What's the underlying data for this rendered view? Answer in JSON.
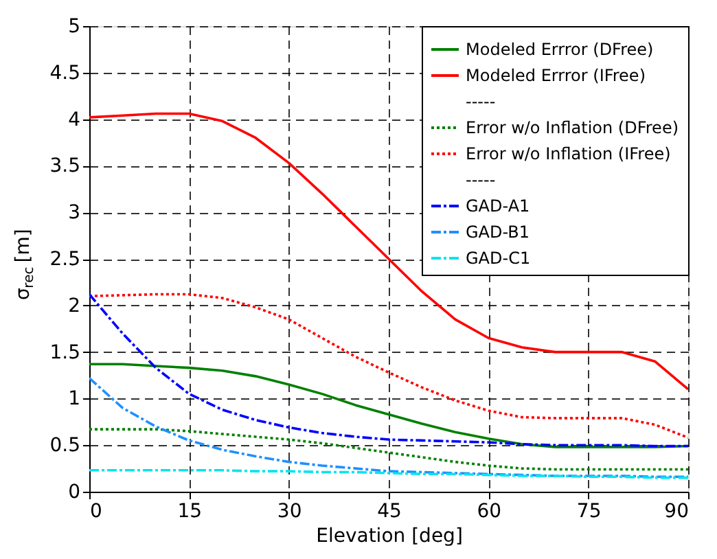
{
  "chart_data": {
    "type": "line",
    "xlabel": "Elevation [deg]",
    "ylabel": "σ$_{rec}$ [m]",
    "x": [
      0,
      5,
      10,
      15,
      20,
      25,
      30,
      35,
      40,
      45,
      50,
      55,
      60,
      65,
      70,
      75,
      80,
      85,
      90
    ],
    "xlim": [
      0,
      90
    ],
    "xticks": [
      0,
      15,
      30,
      45,
      60,
      75,
      90
    ],
    "ylim": [
      0,
      5
    ],
    "yticks": [
      0,
      0.5,
      1,
      1.5,
      2,
      2.5,
      3,
      3.5,
      4,
      4.5,
      5
    ],
    "grid": true,
    "legend": "top right",
    "marker": "none",
    "series": [
      {
        "name": "Modeled Errror (DFree)",
        "color": "#008000",
        "line_style": "solid",
        "values": [
          1.37,
          1.37,
          1.35,
          1.33,
          1.3,
          1.24,
          1.15,
          1.05,
          0.93,
          0.83,
          0.73,
          0.64,
          0.57,
          0.51,
          0.48,
          0.48,
          0.48,
          0.48,
          0.49
        ]
      },
      {
        "name": "Modeled Errror (IFree)",
        "color": "#ff0000",
        "line_style": "solid",
        "values": [
          4.02,
          4.04,
          4.06,
          4.06,
          3.98,
          3.8,
          3.53,
          3.2,
          2.85,
          2.5,
          2.15,
          1.85,
          1.65,
          1.55,
          1.5,
          1.5,
          1.5,
          1.4,
          1.1
        ]
      },
      {
        "name": "-----",
        "values": [
          null,
          null,
          null,
          null,
          null,
          null,
          null,
          null,
          null,
          null,
          null,
          null,
          null,
          null,
          null,
          null,
          null,
          null,
          null
        ]
      },
      {
        "name": "Error w/o Inflation (DFree)",
        "color": "#008000",
        "line_style": "dotted",
        "values": [
          0.67,
          0.67,
          0.67,
          0.65,
          0.62,
          0.59,
          0.56,
          0.52,
          0.47,
          0.42,
          0.37,
          0.32,
          0.28,
          0.25,
          0.24,
          0.24,
          0.24,
          0.24,
          0.24
        ]
      },
      {
        "name": "Error w/o Inflation (IFree)",
        "color": "#ff0000",
        "line_style": "dotted",
        "values": [
          2.1,
          2.11,
          2.12,
          2.12,
          2.08,
          1.98,
          1.85,
          1.65,
          1.45,
          1.28,
          1.12,
          0.98,
          0.87,
          0.8,
          0.79,
          0.79,
          0.79,
          0.72,
          0.58
        ]
      },
      {
        "name": "-----",
        "values": [
          null,
          null,
          null,
          null,
          null,
          null,
          null,
          null,
          null,
          null,
          null,
          null,
          null,
          null,
          null,
          null,
          null,
          null,
          null
        ]
      },
      {
        "name": "GAD-A1",
        "color": "#0000ff",
        "line_style": "dashed",
        "values": [
          2.12,
          1.7,
          1.33,
          1.05,
          0.88,
          0.77,
          0.69,
          0.63,
          0.59,
          0.56,
          0.55,
          0.54,
          0.53,
          0.51,
          0.5,
          0.5,
          0.5,
          0.49,
          0.49
        ]
      },
      {
        "name": "GAD-B1",
        "color": "#1e90ff",
        "line_style": "dashed",
        "values": [
          1.22,
          0.9,
          0.7,
          0.55,
          0.45,
          0.38,
          0.32,
          0.28,
          0.25,
          0.22,
          0.21,
          0.2,
          0.19,
          0.18,
          0.17,
          0.17,
          0.17,
          0.16,
          0.16
        ]
      },
      {
        "name": "GAD-C1",
        "color": "#00e5ee",
        "line_style": "dashed",
        "values": [
          0.23,
          0.23,
          0.23,
          0.23,
          0.23,
          0.22,
          0.22,
          0.21,
          0.21,
          0.2,
          0.19,
          0.19,
          0.18,
          0.17,
          0.17,
          0.16,
          0.16,
          0.15,
          0.15
        ]
      }
    ]
  }
}
